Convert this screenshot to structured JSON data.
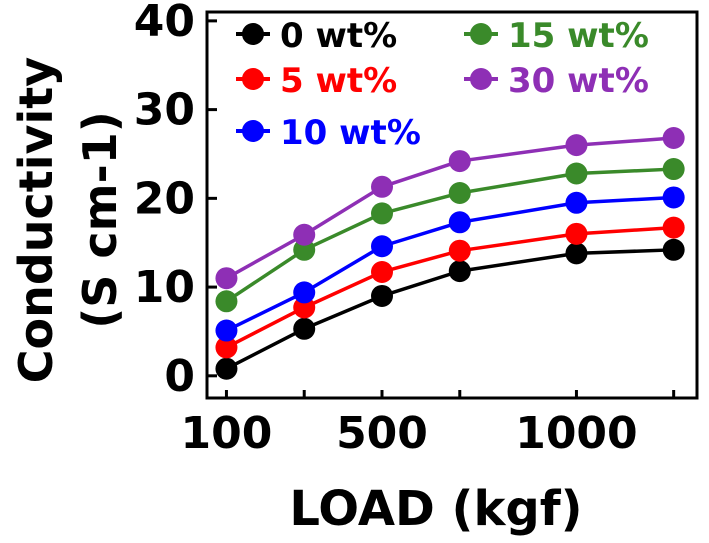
{
  "chart_data": {
    "type": "line",
    "title": "",
    "xlabel": "LOAD (kgf)",
    "ylabel_lines": [
      "Conductivity",
      "(S cm-1)"
    ],
    "x": [
      100,
      300,
      500,
      700,
      1000,
      1250
    ],
    "xlim": [
      50,
      1310
    ],
    "xticks": [
      100,
      500,
      1000
    ],
    "xtick_labels": [
      "100",
      "500",
      "1000"
    ],
    "ylim": [
      -2.5,
      41
    ],
    "yticks": [
      0,
      10,
      20,
      30,
      40
    ],
    "ytick_labels": [
      "0",
      "10",
      "20",
      "30",
      "40"
    ],
    "legend_position": "top-left",
    "series": [
      {
        "name": "0 wt%",
        "color": "#000000",
        "values": [
          0.8,
          5.3,
          9.0,
          11.8,
          13.8,
          14.2
        ]
      },
      {
        "name": "5 wt%",
        "color": "#ff0000",
        "values": [
          3.2,
          7.7,
          11.7,
          14.1,
          16.0,
          16.7
        ]
      },
      {
        "name": "10 wt%",
        "color": "#0000ff",
        "values": [
          5.1,
          9.4,
          14.6,
          17.3,
          19.5,
          20.1
        ]
      },
      {
        "name": "15 wt%",
        "color": "#3a8a2a",
        "values": [
          8.4,
          14.2,
          18.3,
          20.6,
          22.8,
          23.3
        ]
      },
      {
        "name": "30 wt%",
        "color": "#8e2fb5",
        "values": [
          11.0,
          15.9,
          21.3,
          24.2,
          26.0,
          26.8
        ]
      }
    ]
  }
}
